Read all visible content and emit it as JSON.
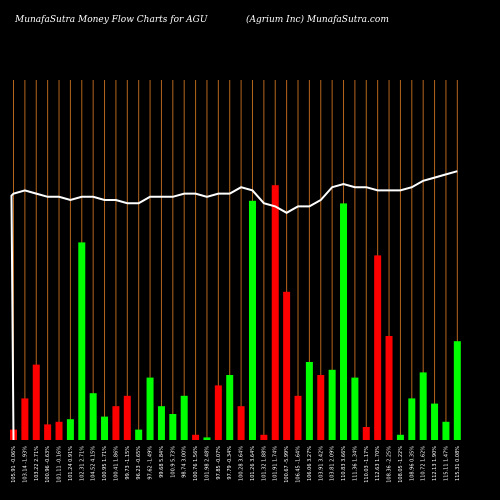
{
  "header": {
    "left": "MunafaSutra  Money Flow  Charts for AGU",
    "right": "(Agrium Inc) MunafaSutra.com"
  },
  "chart_data": {
    "type": "bar",
    "title": "MunafaSutra  Money Flow  Charts for AGU",
    "subtitle": "(Agrium Inc) MunafaSutra.com",
    "grid": true,
    "bar_ylim": [
      0,
      100
    ],
    "line_ylim": [
      0,
      100
    ],
    "colors": {
      "up": "#00ff00",
      "down": "#ff0000",
      "line": "#ffffff",
      "grid": "#b5651d",
      "background": "#000000"
    },
    "categories": [
      "105.91 -0.06%",
      "103.14 -1.93%",
      "103.22 2.71%",
      "100.96 -0.63%",
      "101.11 -0.16%",
      "101.24 0.91%",
      "102.31 2.71%",
      "104.52 4.15%",
      "100.95 1.71%",
      "100.41 1.86%",
      "99.73 -1.15%",
      "96.23 -0.65%",
      "97.62 -1.49%",
      "99.68 5.84%",
      "100.9 5.73%",
      "98.74 3.00%",
      "100.76 1.56%",
      "101.98 2.48%",
      "97.85 -0.07%",
      "97.79 -0.34%",
      "100.28 3.64%",
      "101.26 3.64%",
      "101.32 1.88%",
      "101.91 1.74%",
      "100.67 -5.99%",
      "106.45 -1.64%",
      "106.06 3.27%",
      "103.91 3.42%",
      "103.81 2.09%",
      "110.83 3.66%",
      "111.36 1.34%",
      "110.03 -1.17%",
      "112.63 1.70%",
      "108.36 -2.25%",
      "108.05 -1.22%",
      "108.96 0.35%",
      "110.72 1.62%",
      "112.13 1.90%",
      "115.11 1.47%",
      "115.31 0.08%"
    ],
    "series": [
      {
        "kind": "bar",
        "values": [
          4,
          16,
          29,
          6,
          7,
          8,
          76,
          18,
          9,
          13,
          17,
          4,
          24,
          13,
          10,
          17,
          2,
          1,
          21,
          25,
          13,
          92,
          2,
          98,
          57,
          17,
          30,
          25,
          27,
          91,
          24,
          5,
          71,
          40,
          2,
          16,
          26,
          14,
          7,
          38
        ],
        "colors": [
          "down",
          "down",
          "down",
          "down",
          "down",
          "up",
          "up",
          "up",
          "up",
          "down",
          "down",
          "up",
          "up",
          "up",
          "up",
          "up",
          "down",
          "up",
          "down",
          "up",
          "down",
          "up",
          "down",
          "down",
          "down",
          "down",
          "up",
          "down",
          "up",
          "up",
          "up",
          "down",
          "down",
          "down",
          "up",
          "up",
          "up",
          "up",
          "up",
          "up"
        ]
      },
      {
        "kind": "line",
        "values": [
          77,
          78,
          77,
          76,
          76,
          75,
          76,
          76,
          75,
          75,
          74,
          74,
          76,
          76,
          76,
          77,
          77,
          76,
          77,
          77,
          79,
          78,
          74,
          73,
          71,
          73,
          73,
          75,
          79,
          80,
          79,
          79,
          78,
          78,
          78,
          79,
          81,
          82,
          83,
          84
        ]
      }
    ]
  }
}
